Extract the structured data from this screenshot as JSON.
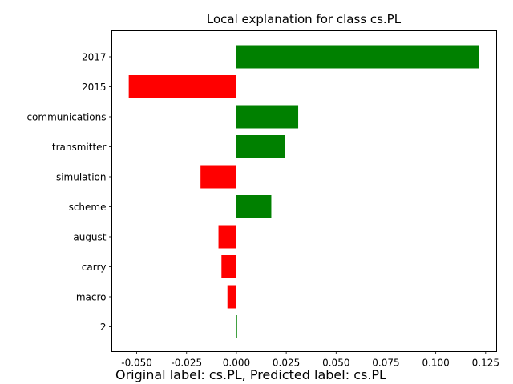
{
  "chart_data": {
    "type": "bar",
    "orientation": "horizontal",
    "title": "Local explanation for class cs.PL",
    "categories": [
      "2017",
      "2015",
      "communications",
      "transmitter",
      "simulation",
      "scheme",
      "august",
      "carry",
      "macro",
      "2"
    ],
    "values": [
      0.1215,
      -0.054,
      0.031,
      0.0245,
      -0.018,
      0.0175,
      -0.009,
      -0.0075,
      -0.0045,
      0.0003
    ],
    "xlim": [
      -0.0625,
      0.1305
    ],
    "xticks": [
      "-0.050",
      "-0.025",
      "0.000",
      "0.025",
      "0.050",
      "0.075",
      "0.100",
      "0.125"
    ],
    "xtick_values": [
      -0.05,
      -0.025,
      0,
      0.025,
      0.05,
      0.075,
      0.1,
      0.125
    ],
    "xlabel": "",
    "ylabel": "",
    "grid": false,
    "colors": {
      "positive": "#008000",
      "negative": "#ff0000"
    }
  },
  "caption": "Original label: cs.PL, Predicted label: cs.PL"
}
